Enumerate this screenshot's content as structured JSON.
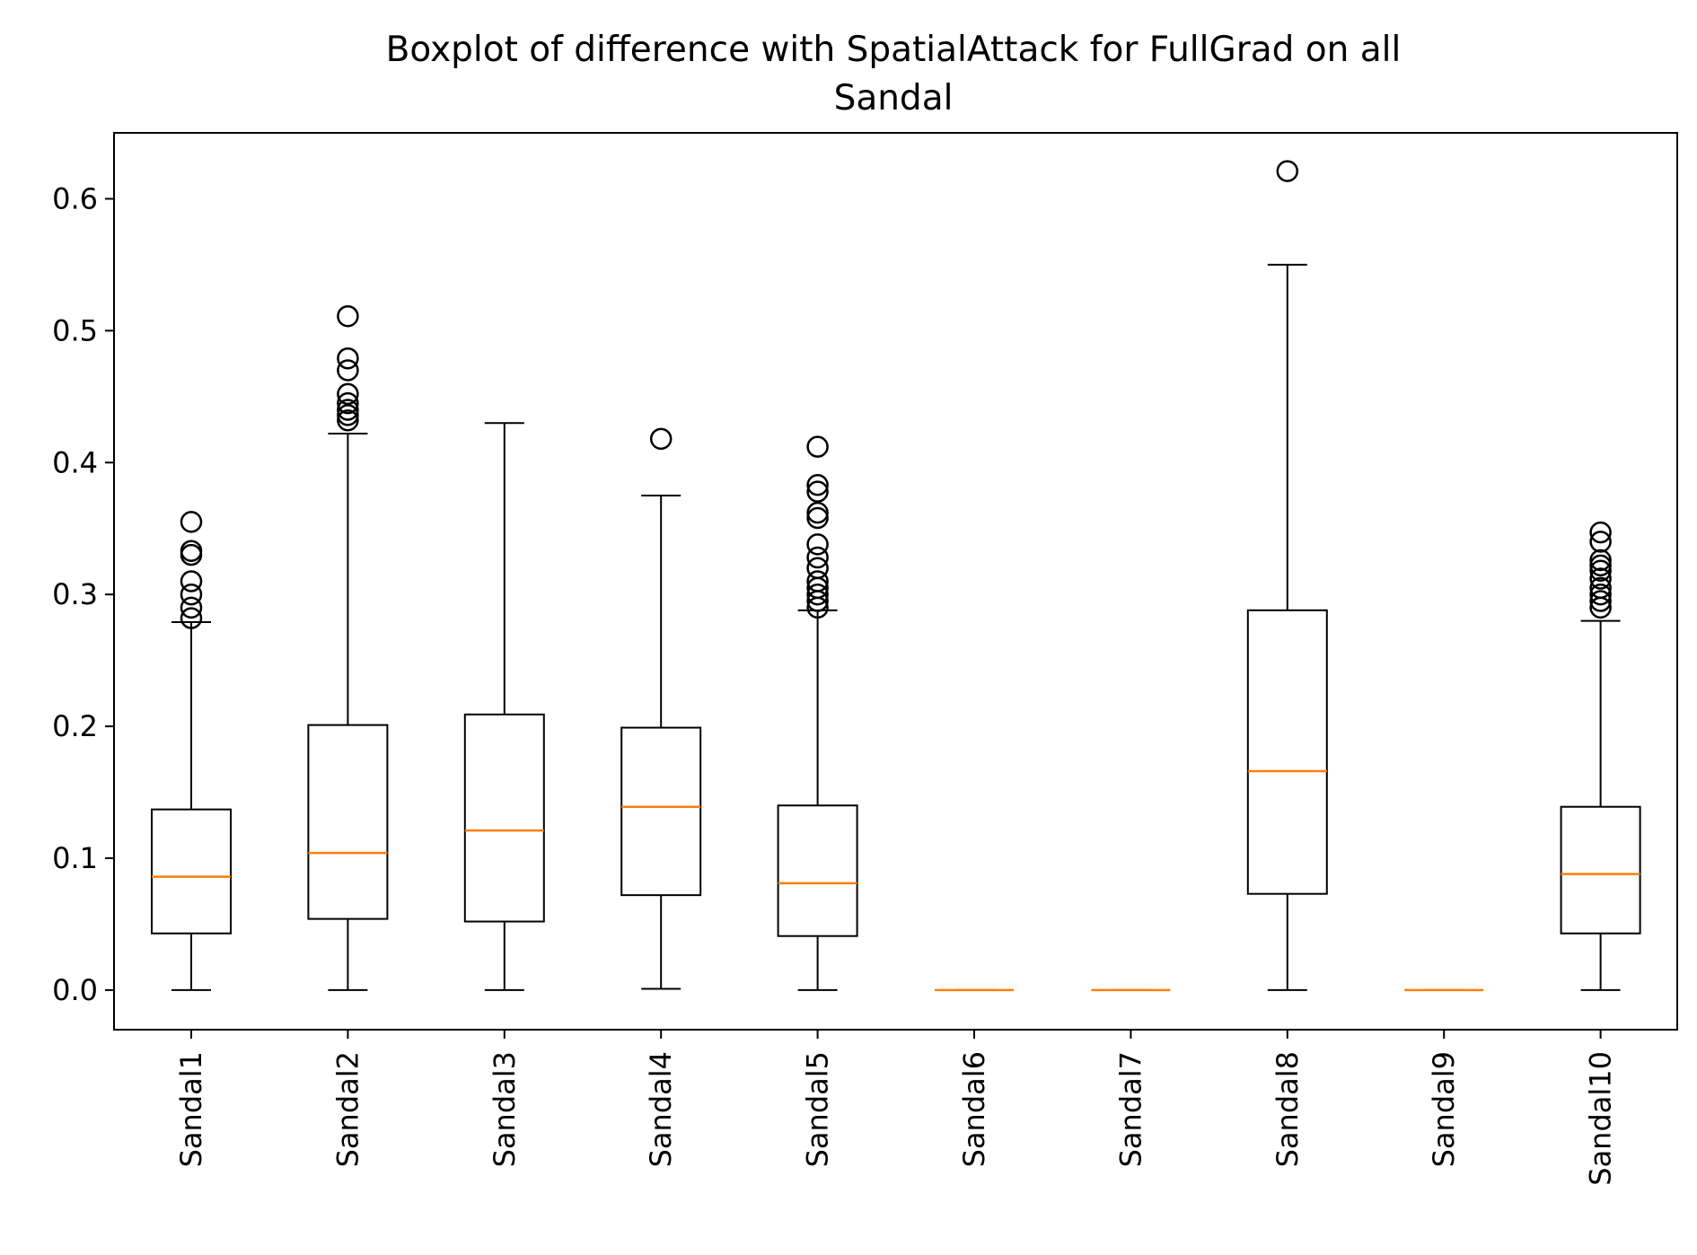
{
  "chart_data": {
    "type": "box",
    "title_line1": "Boxplot of difference with SpatialAttack for FullGrad on all",
    "title_line2": "Sandal",
    "xlabel": "",
    "ylabel": "",
    "ylim": [
      -0.03,
      0.65
    ],
    "yticks": [
      0.0,
      0.1,
      0.2,
      0.3,
      0.4,
      0.5,
      0.6
    ],
    "ytick_labels": [
      "0.0",
      "0.1",
      "0.2",
      "0.3",
      "0.4",
      "0.5",
      "0.6"
    ],
    "categories": [
      "Sandal1",
      "Sandal2",
      "Sandal3",
      "Sandal4",
      "Sandal5",
      "Sandal6",
      "Sandal7",
      "Sandal8",
      "Sandal9",
      "Sandal10"
    ],
    "grid": false,
    "colors": {
      "box": "#000000",
      "median": "#ff7f0e",
      "flier": "#000000"
    },
    "boxes": [
      {
        "name": "Sandal1",
        "whisker_low": 0.0,
        "q1": 0.043,
        "median": 0.086,
        "q3": 0.137,
        "whisker_high": 0.279,
        "fliers": [
          0.282,
          0.29,
          0.3,
          0.31,
          0.33,
          0.333,
          0.355
        ]
      },
      {
        "name": "Sandal2",
        "whisker_low": 0.0,
        "q1": 0.054,
        "median": 0.104,
        "q3": 0.201,
        "whisker_high": 0.422,
        "fliers": [
          0.432,
          0.436,
          0.44,
          0.445,
          0.452,
          0.47,
          0.479,
          0.511
        ]
      },
      {
        "name": "Sandal3",
        "whisker_low": 0.0,
        "q1": 0.052,
        "median": 0.121,
        "q3": 0.209,
        "whisker_high": 0.43,
        "fliers": []
      },
      {
        "name": "Sandal4",
        "whisker_low": 0.001,
        "q1": 0.072,
        "median": 0.139,
        "q3": 0.199,
        "whisker_high": 0.375,
        "fliers": [
          0.418
        ]
      },
      {
        "name": "Sandal5",
        "whisker_low": 0.0,
        "q1": 0.041,
        "median": 0.081,
        "q3": 0.14,
        "whisker_high": 0.288,
        "fliers": [
          0.29,
          0.295,
          0.3,
          0.305,
          0.31,
          0.32,
          0.328,
          0.338,
          0.358,
          0.362,
          0.378,
          0.383,
          0.412
        ]
      },
      {
        "name": "Sandal6",
        "whisker_low": 0.0,
        "q1": 0.0,
        "median": 0.0,
        "q3": 0.0,
        "whisker_high": 0.0,
        "fliers": []
      },
      {
        "name": "Sandal7",
        "whisker_low": 0.0,
        "q1": 0.0,
        "median": 0.0,
        "q3": 0.0,
        "whisker_high": 0.0,
        "fliers": []
      },
      {
        "name": "Sandal8",
        "whisker_low": 0.0,
        "q1": 0.073,
        "median": 0.166,
        "q3": 0.288,
        "whisker_high": 0.55,
        "fliers": [
          0.621
        ]
      },
      {
        "name": "Sandal9",
        "whisker_low": 0.0,
        "q1": 0.0,
        "median": 0.0,
        "q3": 0.0,
        "whisker_high": 0.0,
        "fliers": []
      },
      {
        "name": "Sandal10",
        "whisker_low": 0.0,
        "q1": 0.043,
        "median": 0.088,
        "q3": 0.139,
        "whisker_high": 0.28,
        "fliers": [
          0.29,
          0.295,
          0.3,
          0.305,
          0.312,
          0.318,
          0.322,
          0.326,
          0.34,
          0.347
        ]
      }
    ]
  }
}
